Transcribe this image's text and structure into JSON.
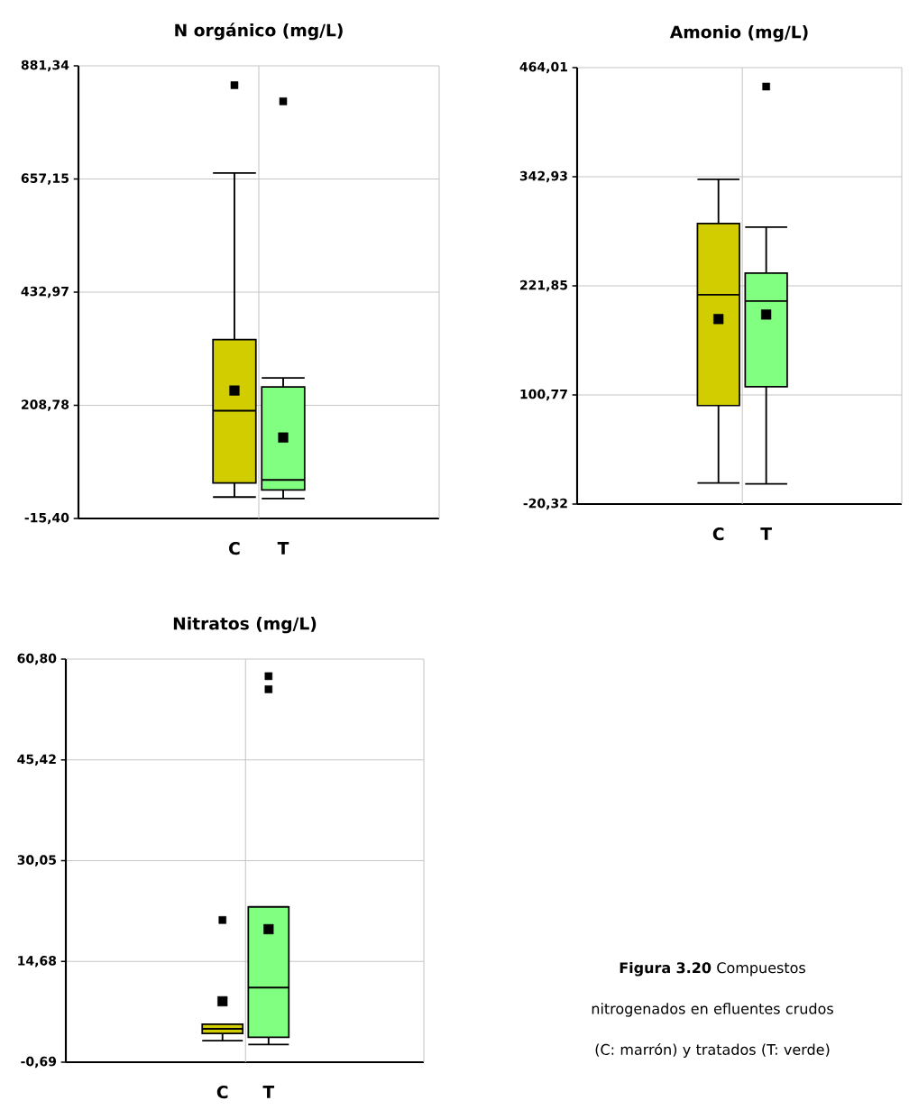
{
  "chart_data": [
    {
      "type": "box",
      "title": "N orgánico (mg/L)",
      "categories": [
        "C",
        "T"
      ],
      "colors": [
        "#d1cd00",
        "#80ff80"
      ],
      "boxes": [
        {
          "low": 27,
          "q1": 55,
          "median": 198,
          "q3": 339,
          "high": 669,
          "mean": 238,
          "outliers": [
            843
          ]
        },
        {
          "low": 24,
          "q1": 41,
          "median": 61,
          "q3": 245,
          "high": 263,
          "mean": 145,
          "outliers": [
            811
          ]
        }
      ],
      "ylim": [
        -15.4,
        881.34
      ],
      "yticks": [
        {
          "value": -15.4,
          "label": "-15,40"
        },
        {
          "value": 208.78,
          "label": "208,78"
        },
        {
          "value": 432.97,
          "label": "432,97"
        },
        {
          "value": 657.15,
          "label": "657,15"
        },
        {
          "value": 881.34,
          "label": "881,34"
        }
      ],
      "grid": true
    },
    {
      "type": "box",
      "title": "Amonio (mg/L)",
      "categories": [
        "C",
        "T"
      ],
      "colors": [
        "#d1cd00",
        "#80ff80"
      ],
      "boxes": [
        {
          "low": 3,
          "q1": 89,
          "median": 212,
          "q3": 291,
          "high": 340,
          "mean": 185
        },
        {
          "low": 2,
          "q1": 110,
          "median": 205,
          "q3": 236,
          "high": 287,
          "mean": 190,
          "outliers": [
            443
          ]
        }
      ],
      "ylim": [
        -20.32,
        464.01
      ],
      "yticks": [
        {
          "value": -20.32,
          "label": "-20,32"
        },
        {
          "value": 100.77,
          "label": "100,77"
        },
        {
          "value": 221.85,
          "label": "221,85"
        },
        {
          "value": 342.93,
          "label": "342,93"
        },
        {
          "value": 464.01,
          "label": "464,01"
        }
      ],
      "grid": true
    },
    {
      "type": "box",
      "title": "Nitratos (mg/L)",
      "categories": [
        "C",
        "T"
      ],
      "colors": [
        "#d1cd00",
        "#80ff80"
      ],
      "boxes": [
        {
          "low": 2.6,
          "q1": 3.7,
          "median": 4.4,
          "q3": 5.1,
          "high": 5.1,
          "mean": 8.6,
          "outliers": [
            21.0
          ]
        },
        {
          "low": 2.0,
          "q1": 3.1,
          "median": 10.7,
          "q3": 23.0,
          "high": 23.0,
          "mean": 19.6,
          "outliers": [
            56.2,
            58.2
          ]
        }
      ],
      "ylim": [
        -0.69,
        60.8
      ],
      "yticks": [
        {
          "value": -0.69,
          "label": "-0,69"
        },
        {
          "value": 14.68,
          "label": "14,68"
        },
        {
          "value": 30.05,
          "label": "30,05"
        },
        {
          "value": 45.42,
          "label": "45,42"
        },
        {
          "value": 60.8,
          "label": "60,80"
        }
      ],
      "grid": true,
      "annotations": [
        "**Figura 3.20** Compuestos nitrogenados en efluentes crudos (C: marrón) y tratados (T: verde)"
      ]
    }
  ]
}
